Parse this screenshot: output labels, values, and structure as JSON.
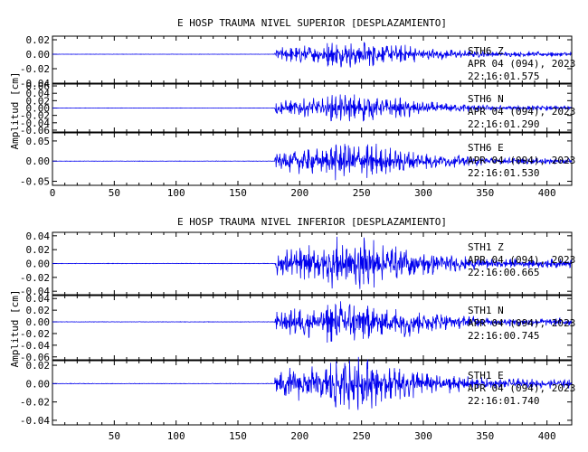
{
  "chart_data": [
    {
      "type": "line",
      "title": "E HOSP TRAUMA NIVEL SUPERIOR [DESPLAZAMIENTO]",
      "ylabel": "Amplitud [cm]",
      "xlabel": "",
      "xlim": [
        0,
        420
      ],
      "x_ticks": [
        0,
        50,
        100,
        150,
        200,
        250,
        300,
        350,
        400
      ],
      "x_tick_labels": [
        "0",
        "50",
        "100",
        "150",
        "200",
        "250",
        "300",
        "350",
        "400"
      ],
      "grid": false,
      "color": "#0000ee",
      "panels": [
        {
          "station": "STH6",
          "component": "Z",
          "date_line": "APR 04 (094), 2023",
          "time": "22:16:01.575",
          "ylim": [
            -0.04,
            0.025
          ],
          "y_ticks": [
            0.02,
            0.0,
            -0.02,
            -0.04
          ],
          "y_tick_labels": [
            "0.02",
            "0.00",
            "-0.02",
            "-0.04"
          ],
          "peak_amplitude": 0.02,
          "onset_s": 180
        },
        {
          "station": "STH6",
          "component": "N",
          "date_line": "APR 04 (094), 2023",
          "time": "22:16:01.290",
          "ylim": [
            -0.065,
            0.065
          ],
          "y_ticks": [
            0.06,
            0.04,
            0.02,
            0.0,
            -0.02,
            -0.04,
            -0.06
          ],
          "y_tick_labels": [
            "0.06",
            "0.04",
            "0.02",
            "0.00",
            "-0.02",
            "-0.04",
            "-0.06"
          ],
          "peak_amplitude": 0.04,
          "onset_s": 180
        },
        {
          "station": "STH6",
          "component": "E",
          "date_line": "APR 04 (094), 2023",
          "time": "22:16:01.530",
          "ylim": [
            -0.06,
            0.07
          ],
          "y_ticks": [
            0.05,
            0.0,
            -0.05
          ],
          "y_tick_labels": [
            "0.05",
            "0.00",
            "-0.05"
          ],
          "peak_amplitude": 0.05,
          "onset_s": 180
        }
      ]
    },
    {
      "type": "line",
      "title": "E HOSP TRAUMA NIVEL INFERIOR [DESPLAZAMIENTO]",
      "ylabel": "Amplitud [cm]",
      "xlabel": "",
      "xlim": [
        0,
        420
      ],
      "x_ticks": [
        50,
        100,
        150,
        200,
        250,
        300,
        350,
        400
      ],
      "x_tick_labels": [
        "50",
        "100",
        "150",
        "200",
        "250",
        "300",
        "350",
        "400"
      ],
      "grid": false,
      "color": "#0000ee",
      "panels": [
        {
          "station": "STH1",
          "component": "Z",
          "date_line": "APR 04 (094), 2023",
          "time": "22:16:00.665",
          "ylim": [
            -0.045,
            0.045
          ],
          "y_ticks": [
            0.04,
            0.02,
            0.0,
            -0.02,
            -0.04
          ],
          "y_tick_labels": [
            "0.04",
            "0.02",
            "0.00",
            "-0.02",
            "-0.04"
          ],
          "peak_amplitude": 0.04,
          "onset_s": 180
        },
        {
          "station": "STH1",
          "component": "N",
          "date_line": "APR 04 (094), 2023",
          "time": "22:16:00.745",
          "ylim": [
            -0.065,
            0.045
          ],
          "y_ticks": [
            0.04,
            0.02,
            0.0,
            -0.02,
            -0.04,
            -0.06
          ],
          "y_tick_labels": [
            "0.04",
            "0.02",
            "0.00",
            "-0.02",
            "-0.04",
            "-0.06"
          ],
          "peak_amplitude": 0.04,
          "onset_s": 180
        },
        {
          "station": "STH1",
          "component": "E",
          "date_line": "APR 04 (094), 2023",
          "time": "22:16:01.740",
          "ylim": [
            -0.045,
            0.025
          ],
          "y_ticks": [
            0.02,
            0.0,
            -0.02,
            -0.04
          ],
          "y_tick_labels": [
            "0.02",
            "0.00",
            "-0.02",
            "-0.04"
          ],
          "peak_amplitude": 0.03,
          "onset_s": 180
        }
      ]
    }
  ]
}
